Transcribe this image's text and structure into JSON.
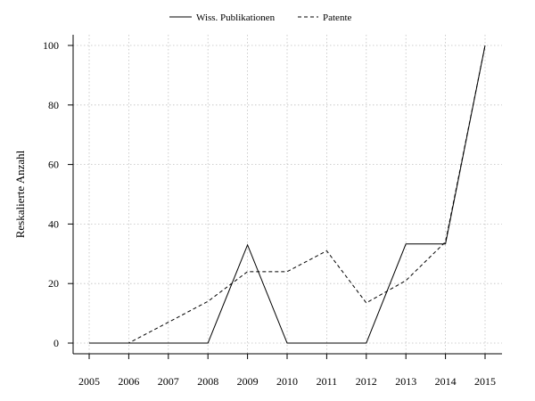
{
  "chart_data": {
    "type": "line",
    "title": "",
    "xlabel": "",
    "ylabel": "Reskalierte Anzahl",
    "x": [
      2005,
      2006,
      2007,
      2008,
      2009,
      2010,
      2011,
      2012,
      2013,
      2014,
      2015
    ],
    "x_tick_labels": [
      "2005",
      "2006",
      "2007",
      "2008",
      "2009",
      "2010",
      "2011",
      "2012",
      "2013",
      "2014",
      "2015"
    ],
    "y_ticks": [
      0,
      20,
      40,
      60,
      80,
      100
    ],
    "y_tick_labels": [
      "0",
      "20",
      "40",
      "60",
      "80",
      "100"
    ],
    "xlim": [
      2005,
      2015
    ],
    "ylim": [
      0,
      100
    ],
    "grid": true,
    "legend_position": "top",
    "series": [
      {
        "name": "Wiss. Publikationen",
        "line_style": "solid",
        "color": "#000000",
        "values": [
          0,
          0,
          0,
          0,
          33,
          0,
          0,
          0,
          33.3,
          33.3,
          100
        ]
      },
      {
        "name": "Patente",
        "line_style": "dashed",
        "color": "#000000",
        "values": [
          0,
          0,
          7,
          14,
          24,
          24,
          31,
          13.5,
          21,
          34,
          100
        ]
      }
    ]
  }
}
